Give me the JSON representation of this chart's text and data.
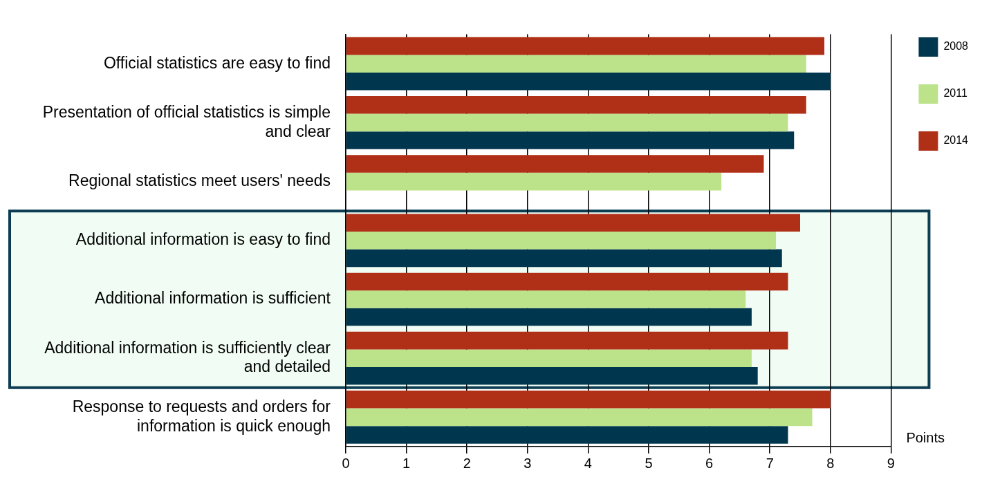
{
  "chart_data": {
    "type": "bar",
    "orientation": "horizontal",
    "xlabel": "Points",
    "categories": [
      "Official statistics are easy to find",
      "Presentation of official statistics is simple and clear",
      "Regional statistics meet users' needs",
      "Additional information is easy to find",
      "Additional information is sufficient",
      "Additional information is sufficiently clear and detailed",
      "Response to requests and orders for information is quick enough"
    ],
    "series": [
      {
        "name": "2014",
        "color": "#b02f17",
        "values": [
          7.9,
          7.6,
          6.9,
          7.5,
          7.3,
          7.3,
          8.0
        ]
      },
      {
        "name": "2011",
        "color": "#bce28a",
        "values": [
          7.6,
          7.3,
          6.2,
          7.1,
          6.6,
          6.7,
          7.7
        ]
      },
      {
        "name": "2008",
        "color": "#00374f",
        "values": [
          8.0,
          7.4,
          null,
          7.2,
          6.7,
          6.8,
          7.3
        ]
      }
    ],
    "xlim": [
      0,
      9
    ],
    "xticks": [
      0,
      1,
      2,
      3,
      4,
      5,
      6,
      7,
      8,
      9
    ],
    "grid": "x",
    "legend": "top right",
    "bands": [
      {
        "axis": "y",
        "from": "Additional information is easy to find",
        "to": "Additional information is sufficiently clear and detailed",
        "color": "#f0fcf4"
      }
    ]
  }
}
